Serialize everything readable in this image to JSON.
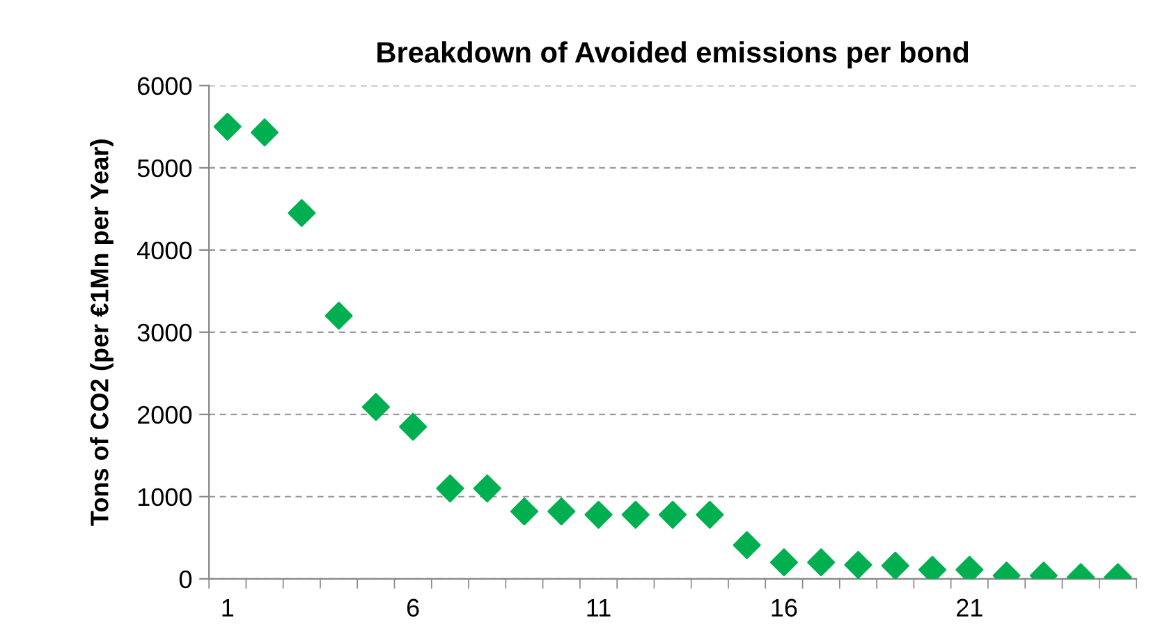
{
  "chart_data": {
    "type": "scatter",
    "title": "Breakdown of Avoided emissions per bond",
    "ylabel": "Tons of CO2 (per €1Mn per Year)",
    "categories": [
      "1",
      null,
      null,
      null,
      null,
      "6",
      null,
      null,
      null,
      null,
      "11",
      null,
      null,
      null,
      null,
      "16",
      null,
      null,
      null,
      null,
      "21",
      null,
      null,
      null,
      null
    ],
    "series": [
      {
        "color": "#00b050",
        "values": [
          5500,
          5430,
          4450,
          3200,
          2090,
          1850,
          1100,
          1100,
          820,
          820,
          780,
          780,
          780,
          780,
          410,
          200,
          200,
          170,
          160,
          110,
          110,
          40,
          40,
          20,
          20
        ]
      }
    ],
    "ylim": [
      0,
      6000
    ],
    "yticks": [
      0,
      1000,
      2000,
      3000,
      4000,
      5000,
      6000
    ],
    "grid": "y",
    "marker": "diamond"
  }
}
